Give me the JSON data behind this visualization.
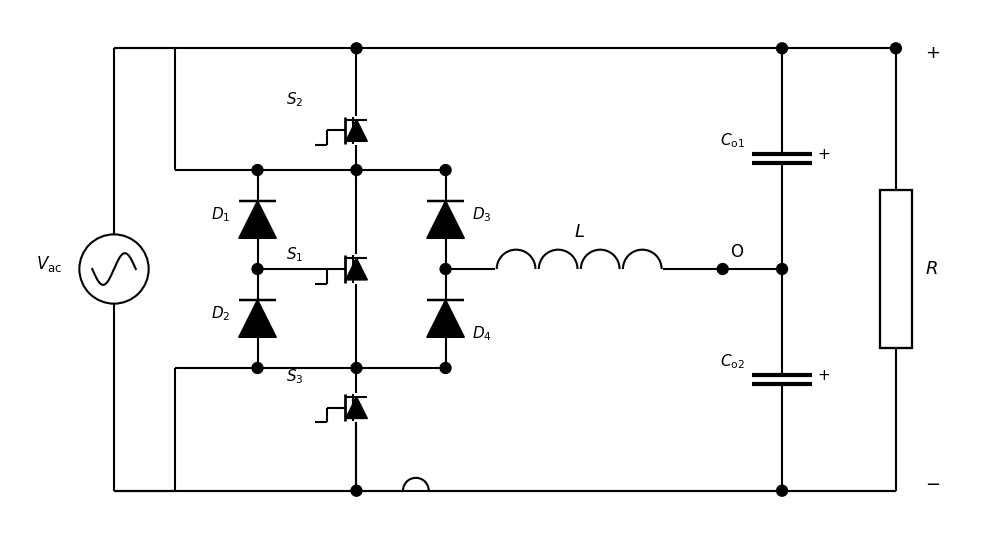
{
  "bg_color": "#ffffff",
  "line_color": "#000000",
  "lw": 1.5,
  "fig_width": 10.0,
  "fig_height": 5.41,
  "dpi": 100
}
